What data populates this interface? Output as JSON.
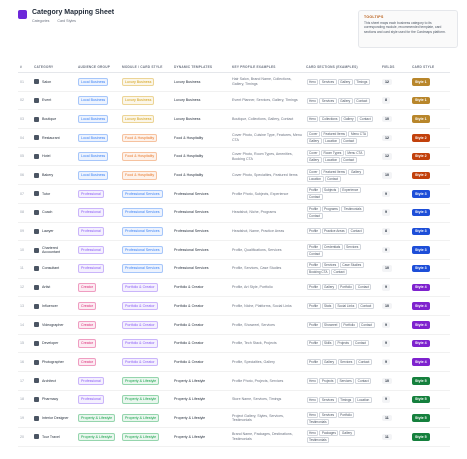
{
  "header": {
    "title": "Category Mapping Sheet",
    "subtitle_1": "Categories",
    "subtitle_2": "Card Styles"
  },
  "tooltip": {
    "title": "TOOLTIPS",
    "text": "This sheet maps each business category to its corresponding module, recommended template, card sections and card style used for the Cardmaps platform."
  },
  "table": {
    "columns": [
      "#",
      "CATEGORY",
      "AUDIENCE GROUP",
      "MODULE / CARD STYLE",
      "DYNAMIC TEMPLATES",
      "KEY PROFILE EXAMPLES",
      "CARD SECTIONS (EXAMPLES)",
      "FIELDS",
      "CARD STYLE"
    ],
    "rows": [
      {
        "num": "01",
        "category": "Salon",
        "audience": "Local Business",
        "audience_color": "#3b82f6",
        "module": "Luxury Business",
        "module_color": "#d4a017",
        "template": "Luxury Business",
        "profiles": "Hair Salon, Brand Name, Collections, Gallery, Timings",
        "sections": [
          "Hero",
          "Services",
          "Gallery",
          "Timings"
        ],
        "fields": "12",
        "style": "Style 1",
        "style_color": "#b8862b"
      },
      {
        "num": "02",
        "category": "Event",
        "audience": "Local Business",
        "audience_color": "#3b82f6",
        "module": "Luxury Business",
        "module_color": "#d4a017",
        "template": "Luxury Business",
        "profiles": "Event Planner, Services, Gallery, Timings",
        "sections": [
          "Hero",
          "Services",
          "Gallery",
          "Contact"
        ],
        "fields": "8",
        "style": "Style 1",
        "style_color": "#b8862b"
      },
      {
        "num": "03",
        "category": "Boutique",
        "audience": "Local Business",
        "audience_color": "#3b82f6",
        "module": "Luxury Business",
        "module_color": "#d4a017",
        "template": "Luxury Business",
        "profiles": "Boutique, Collections, Gallery, Contact",
        "sections": [
          "Hero",
          "Collections",
          "Gallery",
          "Contact"
        ],
        "fields": "10",
        "style": "Style 1",
        "style_color": "#b8862b"
      },
      {
        "num": "04",
        "category": "Restaurant",
        "audience": "Local Business",
        "audience_color": "#3b82f6",
        "module": "Food & Hospitality",
        "module_color": "#ea7a2c",
        "template": "Food & Hospitality",
        "profiles": "Cover Photo, Cuisine Type, Features, Menu CTA",
        "sections": [
          "Cover",
          "Featured Items",
          "Menu CTA",
          "Gallery",
          "Location",
          "Contact"
        ],
        "fields": "12",
        "style": "Style 2",
        "style_color": "#c2410c"
      },
      {
        "num": "05",
        "category": "Hotel",
        "audience": "Local Business",
        "audience_color": "#3b82f6",
        "module": "Food & Hospitality",
        "module_color": "#ea7a2c",
        "template": "Food & Hospitality",
        "profiles": "Cover Photo, Room Types, Amenities, Booking CTA",
        "sections": [
          "Cover",
          "Room Types",
          "Menu CTA",
          "Gallery",
          "Location",
          "Contact"
        ],
        "fields": "12",
        "style": "Style 2",
        "style_color": "#c2410c"
      },
      {
        "num": "06",
        "category": "Bakery",
        "audience": "Local Business",
        "audience_color": "#3b82f6",
        "module": "Food & Hospitality",
        "module_color": "#ea7a2c",
        "template": "Food & Hospitality",
        "profiles": "Cover Photo, Specialties, Featured Items",
        "sections": [
          "Cover",
          "Featured Items",
          "Gallery",
          "Location",
          "Contact"
        ],
        "fields": "10",
        "style": "Style 2",
        "style_color": "#c2410c"
      },
      {
        "num": "07",
        "category": "Tutor",
        "audience": "Professional",
        "audience_color": "#8b5cf6",
        "module": "Professional Services",
        "module_color": "#3b82f6",
        "template": "Professional Services",
        "profiles": "Profile Photo, Subjects, Experience",
        "sections": [
          "Profile",
          "Subjects",
          "Experience",
          "Contact"
        ],
        "fields": "9",
        "style": "Style 3",
        "style_color": "#1d4ed8"
      },
      {
        "num": "08",
        "category": "Coach",
        "audience": "Professional",
        "audience_color": "#8b5cf6",
        "module": "Professional Services",
        "module_color": "#3b82f6",
        "template": "Professional Services",
        "profiles": "Headshot, Niche, Programs",
        "sections": [
          "Profile",
          "Programs",
          "Testimonials",
          "Contact"
        ],
        "fields": "9",
        "style": "Style 3",
        "style_color": "#1d4ed8"
      },
      {
        "num": "09",
        "category": "Lawyer",
        "audience": "Professional",
        "audience_color": "#8b5cf6",
        "module": "Professional Services",
        "module_color": "#3b82f6",
        "template": "Professional Services",
        "profiles": "Headshot, Name, Practice Areas",
        "sections": [
          "Profile",
          "Practice Areas",
          "Contact"
        ],
        "fields": "8",
        "style": "Style 3",
        "style_color": "#1d4ed8"
      },
      {
        "num": "10",
        "category": "Chartered Accountant",
        "audience": "Professional",
        "audience_color": "#8b5cf6",
        "module": "Professional Services",
        "module_color": "#3b82f6",
        "template": "Professional Services",
        "profiles": "Profile, Qualifications, Services",
        "sections": [
          "Profile",
          "Credentials",
          "Services",
          "Contact"
        ],
        "fields": "9",
        "style": "Style 3",
        "style_color": "#1d4ed8"
      },
      {
        "num": "11",
        "category": "Consultant",
        "audience": "Professional",
        "audience_color": "#8b5cf6",
        "module": "Professional Services",
        "module_color": "#3b82f6",
        "template": "Professional Services",
        "profiles": "Profile, Services, Case Studies",
        "sections": [
          "Profile",
          "Services",
          "Case Studies",
          "Booking CTA",
          "Contact"
        ],
        "fields": "10",
        "style": "Style 3",
        "style_color": "#1d4ed8"
      },
      {
        "num": "12",
        "category": "Artist",
        "audience": "Creator",
        "audience_color": "#db2777",
        "module": "Portfolio & Creator",
        "module_color": "#8b5cf6",
        "template": "Portfolio & Creator",
        "profiles": "Profile, Art Style, Portfolio",
        "sections": [
          "Profile",
          "Gallery",
          "Portfolio",
          "Contact"
        ],
        "fields": "9",
        "style": "Style 4",
        "style_color": "#7e22ce"
      },
      {
        "num": "13",
        "category": "Influencer",
        "audience": "Creator",
        "audience_color": "#db2777",
        "module": "Portfolio & Creator",
        "module_color": "#8b5cf6",
        "template": "Portfolio & Creator",
        "profiles": "Profile, Niche, Platforms, Social Links",
        "sections": [
          "Profile",
          "Stats",
          "Social Links",
          "Contact"
        ],
        "fields": "10",
        "style": "Style 4",
        "style_color": "#7e22ce"
      },
      {
        "num": "14",
        "category": "Videographer",
        "audience": "Creator",
        "audience_color": "#db2777",
        "module": "Portfolio & Creator",
        "module_color": "#8b5cf6",
        "template": "Portfolio & Creator",
        "profiles": "Profile, Showreel, Services",
        "sections": [
          "Profile",
          "Showreel",
          "Portfolio",
          "Contact"
        ],
        "fields": "9",
        "style": "Style 4",
        "style_color": "#7e22ce"
      },
      {
        "num": "15",
        "category": "Developer",
        "audience": "Creator",
        "audience_color": "#db2777",
        "module": "Portfolio & Creator",
        "module_color": "#8b5cf6",
        "template": "Portfolio & Creator",
        "profiles": "Profile, Tech Stack, Projects",
        "sections": [
          "Profile",
          "Skills",
          "Projects",
          "Contact"
        ],
        "fields": "9",
        "style": "Style 4",
        "style_color": "#7e22ce"
      },
      {
        "num": "16",
        "category": "Photographer",
        "audience": "Creator",
        "audience_color": "#db2777",
        "module": "Portfolio & Creator",
        "module_color": "#8b5cf6",
        "template": "Portfolio & Creator",
        "profiles": "Profile, Specialties, Gallery",
        "sections": [
          "Profile",
          "Gallery",
          "Services",
          "Contact"
        ],
        "fields": "9",
        "style": "Style 4",
        "style_color": "#7e22ce"
      },
      {
        "num": "17",
        "category": "Architect",
        "audience": "Professional",
        "audience_color": "#8b5cf6",
        "module": "Property & Lifestyle",
        "module_color": "#16a34a",
        "template": "Property & Lifestyle",
        "profiles": "Profile Photo, Projects, Services",
        "sections": [
          "Hero",
          "Projects",
          "Services",
          "Contact"
        ],
        "fields": "10",
        "style": "Style 5",
        "style_color": "#15803d"
      },
      {
        "num": "18",
        "category": "Pharmacy",
        "audience": "Professional",
        "audience_color": "#8b5cf6",
        "module": "Property & Lifestyle",
        "module_color": "#16a34a",
        "template": "Property & Lifestyle",
        "profiles": "Store Name, Services, Timings",
        "sections": [
          "Hero",
          "Services",
          "Timings",
          "Location"
        ],
        "fields": "9",
        "style": "Style 5",
        "style_color": "#15803d"
      },
      {
        "num": "19",
        "category": "Interior Designer",
        "audience": "Property & Lifestyle",
        "audience_color": "#16a34a",
        "module": "Property & Lifestyle",
        "module_color": "#16a34a",
        "template": "Property & Lifestyle",
        "profiles": "Project Gallery, Styles, Services, Testimonials",
        "sections": [
          "Hero",
          "Services",
          "Portfolio",
          "Testimonials"
        ],
        "fields": "11",
        "style": "Style 5",
        "style_color": "#15803d"
      },
      {
        "num": "20",
        "category": "Tour Travel",
        "audience": "Property & Lifestyle",
        "audience_color": "#16a34a",
        "module": "Property & Lifestyle",
        "module_color": "#16a34a",
        "template": "Property & Lifestyle",
        "profiles": "Brand Name, Packages, Destinations, Testimonials",
        "sections": [
          "Hero",
          "Packages",
          "Gallery",
          "Testimonials"
        ],
        "fields": "11",
        "style": "Style 5",
        "style_color": "#15803d"
      }
    ]
  }
}
